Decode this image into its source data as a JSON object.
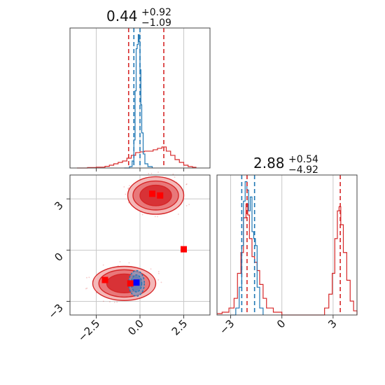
{
  "colors": {
    "red": "#d62728",
    "blue": "#1f77b4",
    "marker_red": "#ff0000",
    "marker_blue": "#0000ff",
    "grid": "#c8c8c8",
    "axes": "#444444",
    "fill_outer": "#f4b8b8",
    "fill_mid": "#e8787a",
    "fill_inner": "#d83236"
  },
  "chart_data": [
    {
      "type": "line",
      "name": "param-1-marginal",
      "title": {
        "value": "0.44",
        "upper": "+0.92",
        "lower": "−1.09"
      },
      "xlim": [
        -4.0,
        4.0
      ],
      "x_ticks": [
        -2.5,
        0.0,
        2.5
      ],
      "x_tick_labels": [],
      "y_ticks": [],
      "red_vlines": [
        -0.65,
        1.36
      ],
      "blue_vlines": [
        -0.35,
        0.0
      ],
      "series": [
        {
          "color": "red",
          "style": "step",
          "x": [
            -3.6,
            -3.0,
            -2.5,
            -2.0,
            -1.75,
            -1.5,
            -1.25,
            -1.0,
            -0.75,
            -0.5,
            -0.25,
            0.0,
            0.25,
            0.5,
            0.75,
            1.0,
            1.25,
            1.5,
            1.75,
            2.0,
            2.25,
            2.5,
            2.75,
            3.0,
            3.2
          ],
          "y": [
            0.0,
            0.003,
            0.006,
            0.012,
            0.02,
            0.03,
            0.04,
            0.05,
            0.07,
            0.09,
            0.11,
            0.115,
            0.12,
            0.12,
            0.13,
            0.14,
            0.15,
            0.12,
            0.09,
            0.06,
            0.04,
            0.02,
            0.01,
            0.005,
            0.0
          ]
        },
        {
          "color": "blue",
          "style": "step",
          "x": [
            -0.9,
            -0.6,
            -0.45,
            -0.35,
            -0.28,
            -0.22,
            -0.16,
            -0.1,
            -0.05,
            0.0,
            0.05,
            0.1,
            0.18,
            0.28,
            0.45,
            0.7
          ],
          "y": [
            0.0,
            0.01,
            0.05,
            0.2,
            0.55,
            0.85,
            0.88,
            0.95,
            0.9,
            0.7,
            0.45,
            0.25,
            0.1,
            0.03,
            0.01,
            0.0
          ]
        }
      ]
    },
    {
      "type": "heatmap",
      "name": "joint-contour",
      "xlim": [
        -4.0,
        4.0
      ],
      "ylim": [
        -3.8,
        4.4
      ],
      "x_ticks": [
        -2.5,
        0.0,
        2.5
      ],
      "x_tick_labels": [
        "−2.5",
        "0.0",
        "2.5"
      ],
      "y_ticks": [
        3,
        0,
        -3
      ],
      "y_tick_labels": [
        "3",
        "0",
        "−3"
      ],
      "red_contours": [
        {
          "center": [
            0.9,
            3.2
          ],
          "radii": [
            [
              1.6,
              1.1
            ],
            [
              1.3,
              0.85
            ],
            [
              0.9,
              0.6
            ]
          ]
        },
        {
          "center": [
            -0.9,
            -1.95
          ],
          "radii": [
            [
              1.8,
              1.0
            ],
            [
              1.45,
              0.8
            ],
            [
              1.0,
              0.55
            ]
          ]
        }
      ],
      "blue_contours": [
        {
          "center": [
            -0.2,
            -1.95
          ],
          "radii": [
            [
              0.45,
              0.75
            ],
            [
              0.3,
              0.5
            ]
          ]
        }
      ],
      "red_square_markers": [
        {
          "x": 0.7,
          "y": 3.3
        },
        {
          "x": 1.15,
          "y": 3.2
        },
        {
          "x": 2.5,
          "y": 0.05
        },
        {
          "x": -2.0,
          "y": -1.75
        },
        {
          "x": -0.55,
          "y": -1.95
        }
      ],
      "blue_square_markers": [
        {
          "x": -0.2,
          "y": -1.9
        }
      ]
    },
    {
      "type": "line",
      "name": "param-2-marginal",
      "title": {
        "value": "2.88",
        "upper": "+0.54",
        "lower": "−4.92"
      },
      "xlim": [
        -3.8,
        4.4
      ],
      "x_ticks": [
        -3,
        0,
        3
      ],
      "x_tick_labels": [
        "−3",
        "0",
        "3"
      ],
      "y_ticks": [],
      "red_vlines": [
        -2.04,
        3.42
      ],
      "blue_vlines": [
        -2.35,
        -1.6
      ],
      "series": [
        {
          "color": "red",
          "style": "step",
          "x": [
            -3.8,
            -3.5,
            -3.1,
            -2.8,
            -2.6,
            -2.4,
            -2.25,
            -2.1,
            -2.0,
            -1.9,
            -1.75,
            -1.6,
            -1.45,
            -1.3,
            -1.1,
            -0.9,
            -0.5,
            0.0,
            1.0,
            2.0,
            2.5,
            2.75,
            2.95,
            3.1,
            3.25,
            3.35,
            3.45,
            3.6,
            3.8,
            4.0,
            4.2,
            4.4
          ],
          "y": [
            0.01,
            0.02,
            0.05,
            0.12,
            0.3,
            0.45,
            0.7,
            0.8,
            0.72,
            0.55,
            0.42,
            0.38,
            0.32,
            0.22,
            0.12,
            0.05,
            0.02,
            0.0,
            0.0,
            0.0,
            0.05,
            0.15,
            0.3,
            0.55,
            0.75,
            0.78,
            0.65,
            0.45,
            0.25,
            0.1,
            0.03,
            0.0
          ]
        },
        {
          "color": "blue",
          "style": "step",
          "x": [
            -3.0,
            -2.7,
            -2.5,
            -2.35,
            -2.25,
            -2.15,
            -2.05,
            -1.95,
            -1.85,
            -1.75,
            -1.65,
            -1.55,
            -1.45,
            -1.3,
            -1.1
          ],
          "y": [
            0.0,
            0.05,
            0.2,
            0.5,
            0.82,
            0.96,
            0.9,
            0.75,
            0.85,
            0.6,
            0.55,
            0.5,
            0.2,
            0.05,
            0.0
          ]
        }
      ]
    }
  ]
}
